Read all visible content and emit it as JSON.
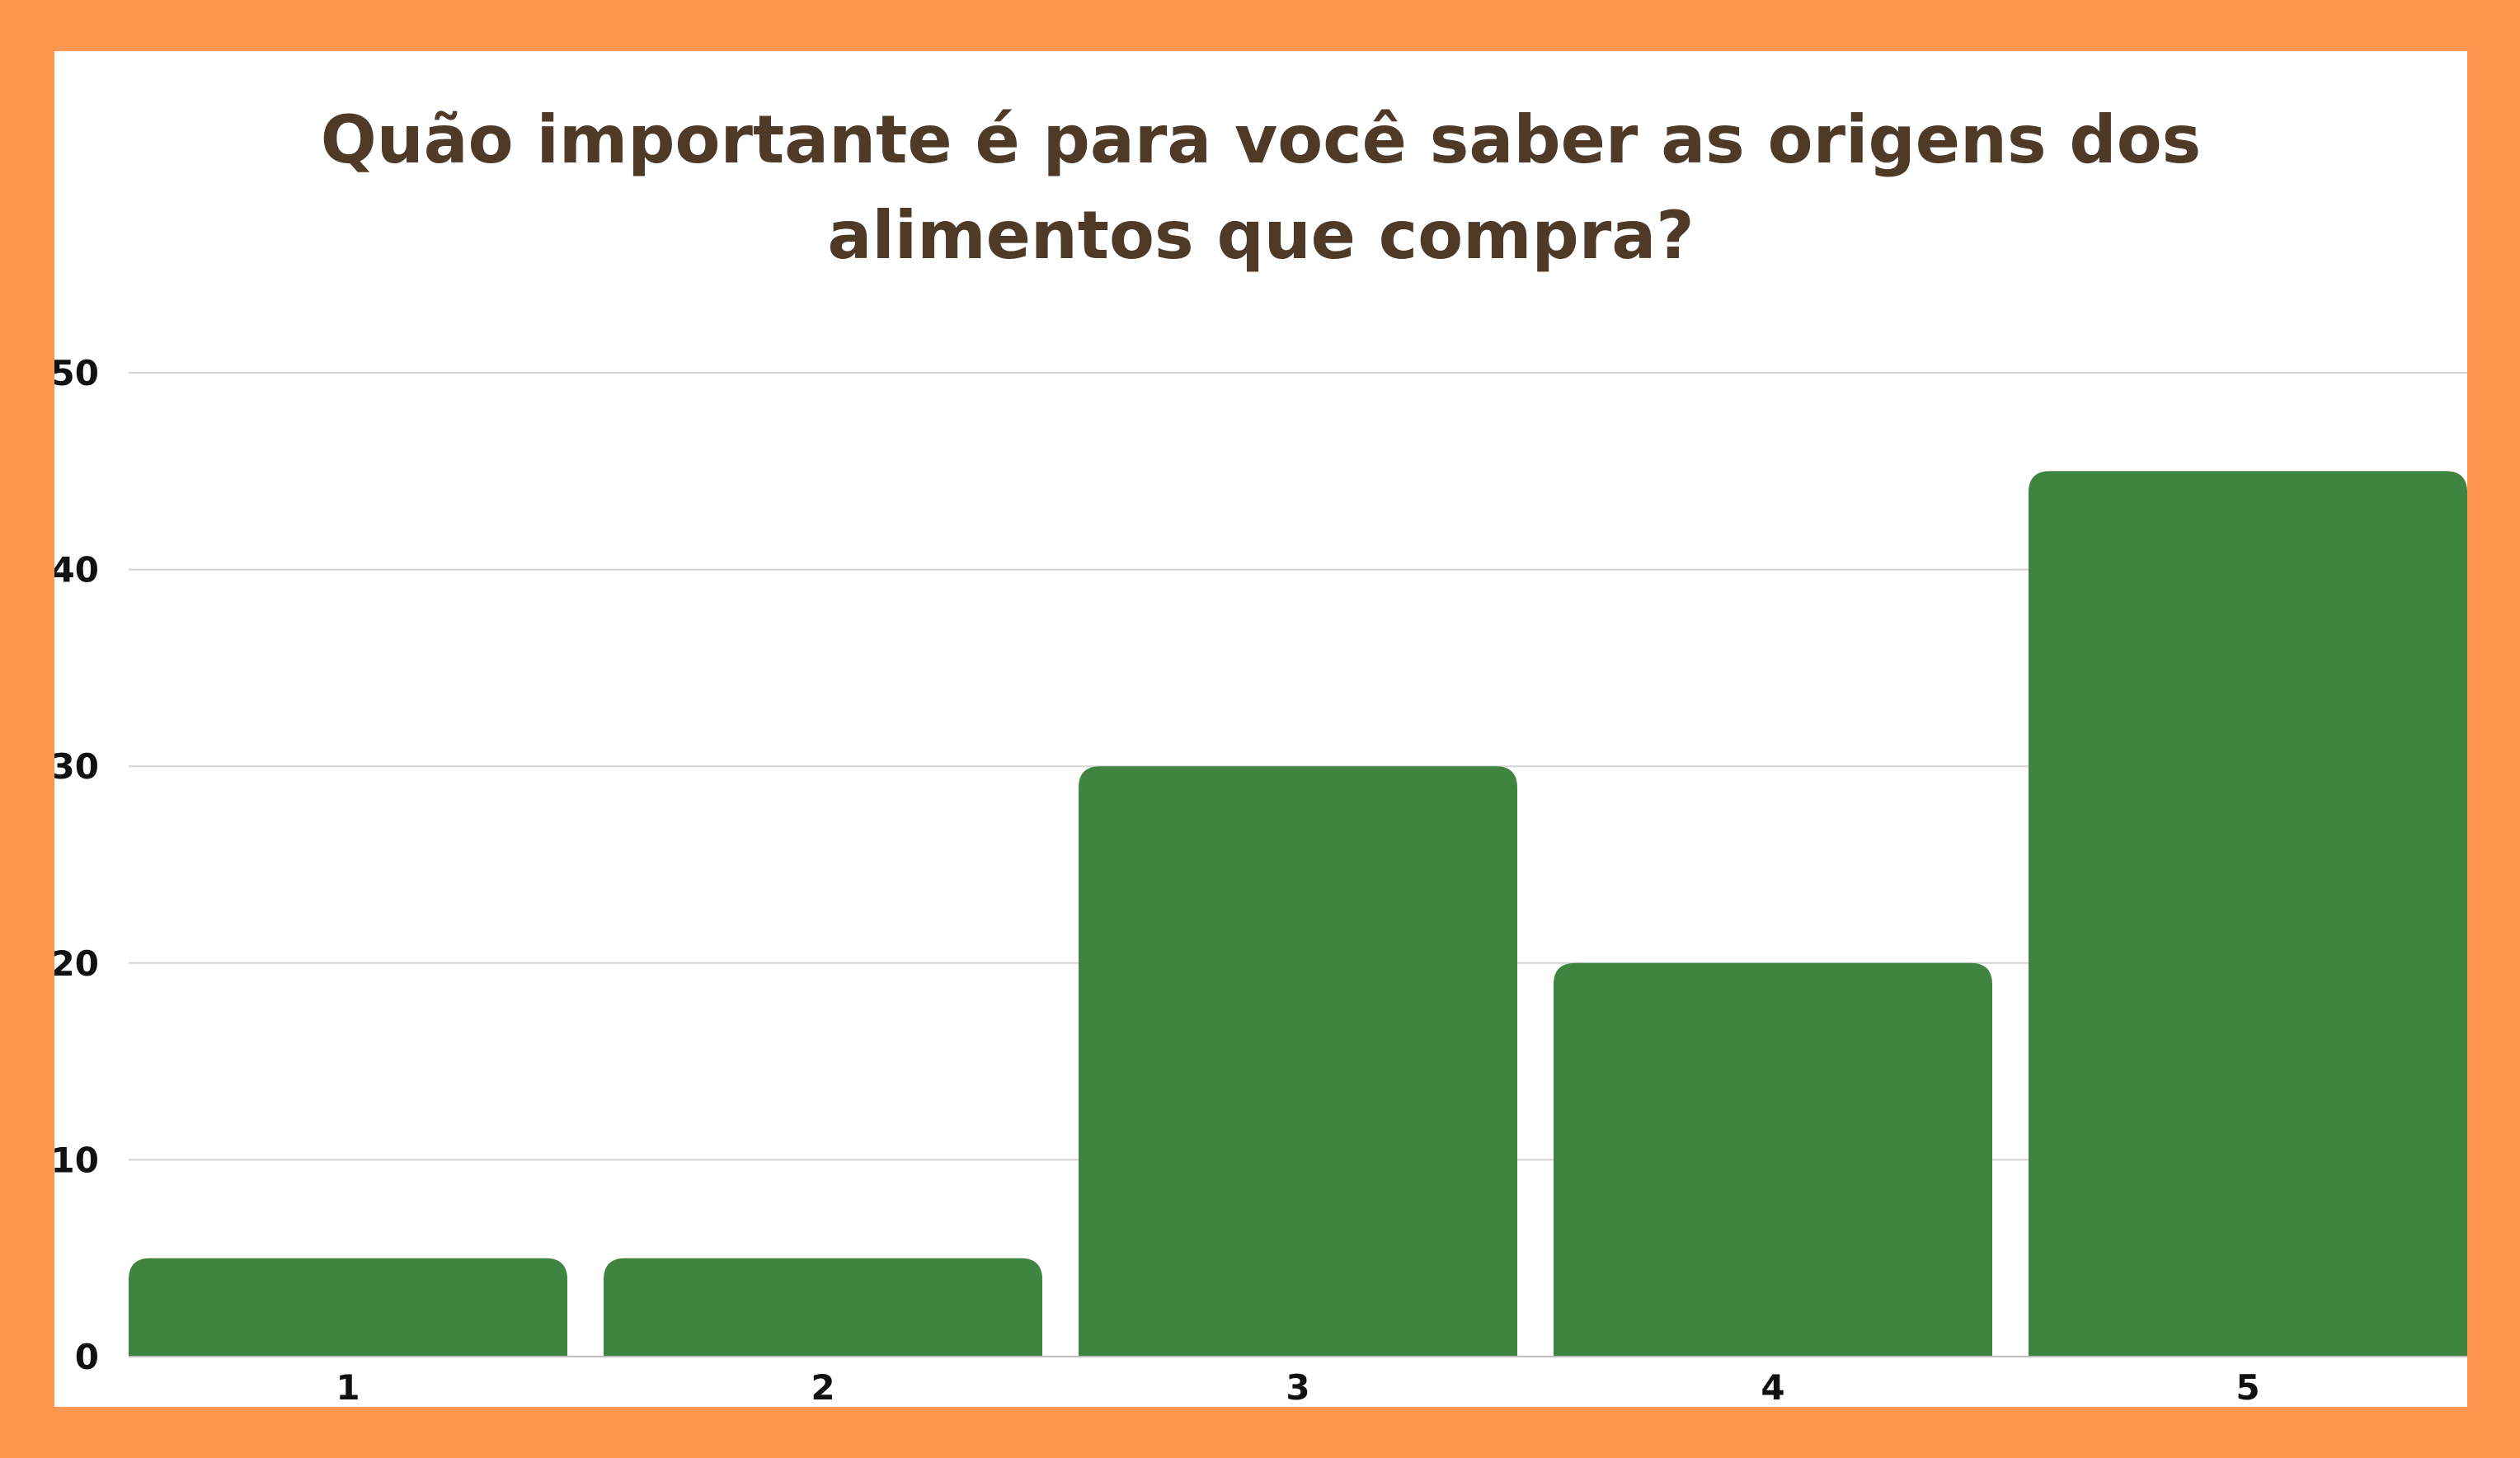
{
  "chart_data": {
    "type": "bar",
    "title_lines": [
      "Quão importante é para você saber as origens dos",
      "alimentos que compra?"
    ],
    "categories": [
      "1",
      "2",
      "3",
      "4",
      "5"
    ],
    "values": [
      5,
      5,
      30,
      20,
      45
    ],
    "xlabel": "",
    "ylabel": "",
    "ylim": [
      0,
      50
    ],
    "yticks": [
      "0",
      "10",
      "20",
      "30",
      "40",
      "50"
    ],
    "grid": true,
    "legend": "none",
    "bar_color": "#3F8441",
    "border_color": "#FF9650",
    "title_color": "#4F3A28"
  }
}
